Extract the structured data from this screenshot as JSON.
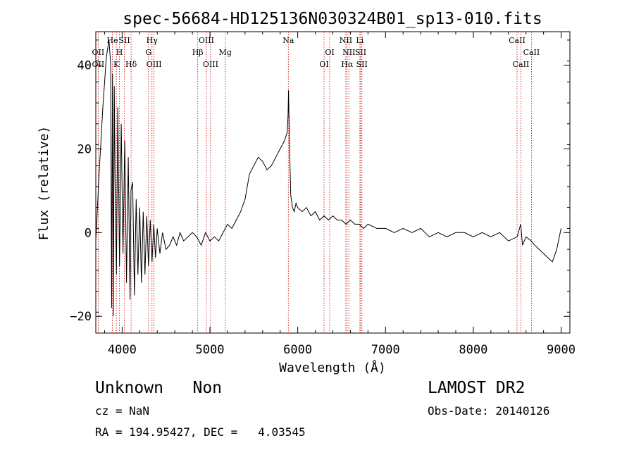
{
  "chart_data": {
    "type": "line",
    "title": "spec-56684-HD125136N030324B01_sp13-010.fits",
    "xlabel": "Wavelength (Å)",
    "ylabel": "Flux (relative)",
    "xlim": [
      3700,
      9100
    ],
    "ylim": [
      -24,
      48
    ],
    "xticks": [
      4000,
      5000,
      6000,
      7000,
      8000,
      9000
    ],
    "yticks": [
      -20,
      0,
      20,
      40
    ],
    "grid": false,
    "series": [
      {
        "color": "#000000",
        "x": [
          3700,
          3740,
          3780,
          3820,
          3850,
          3870,
          3880,
          3890,
          3900,
          3910,
          3920,
          3935,
          3950,
          3970,
          3990,
          4010,
          4030,
          4050,
          4070,
          4090,
          4100,
          4120,
          4140,
          4160,
          4180,
          4200,
          4220,
          4240,
          4260,
          4280,
          4300,
          4320,
          4340,
          4360,
          4380,
          4400,
          4430,
          4460,
          4500,
          4540,
          4580,
          4620,
          4660,
          4700,
          4750,
          4800,
          4850,
          4900,
          4950,
          5000,
          5050,
          5100,
          5150,
          5200,
          5250,
          5300,
          5350,
          5400,
          5450,
          5500,
          5550,
          5600,
          5650,
          5700,
          5750,
          5800,
          5850,
          5880,
          5890,
          5895,
          5900,
          5910,
          5920,
          5940,
          5960,
          5980,
          6000,
          6050,
          6100,
          6150,
          6200,
          6250,
          6300,
          6350,
          6400,
          6450,
          6500,
          6550,
          6600,
          6650,
          6700,
          6750,
          6800,
          6900,
          7000,
          7100,
          7200,
          7300,
          7400,
          7500,
          7600,
          7700,
          7800,
          7900,
          8000,
          8100,
          8200,
          8300,
          8400,
          8500,
          8540,
          8560,
          8600,
          8660,
          8700,
          8750,
          8800,
          8850,
          8900,
          8950,
          9000
        ],
        "y": [
          -2,
          15,
          30,
          42,
          46,
          40,
          -18,
          38,
          -20,
          35,
          12,
          -10,
          30,
          -8,
          26,
          -5,
          22,
          -12,
          18,
          -16,
          10,
          12,
          -15,
          8,
          -10,
          6,
          -12,
          5,
          -10,
          4,
          -8,
          3,
          -7,
          2,
          -6,
          1,
          -5,
          0,
          -4,
          -3,
          -1,
          -3,
          0,
          -2,
          -1,
          0,
          -1,
          -3,
          0,
          -2,
          -1,
          -2,
          0,
          2,
          1,
          3,
          5,
          8,
          14,
          16,
          18,
          17,
          15,
          16,
          18,
          20,
          22,
          24,
          28,
          34,
          28,
          18,
          9,
          6,
          5,
          7,
          6,
          5,
          6,
          4,
          5,
          3,
          4,
          3,
          4,
          3,
          3,
          2,
          3,
          2,
          2,
          1,
          2,
          1,
          1,
          0,
          1,
          0,
          1,
          -1,
          0,
          -1,
          0,
          0,
          -1,
          0,
          -1,
          0,
          -2,
          -1,
          2,
          -3,
          -1,
          -2,
          -3,
          -4,
          -5,
          -6,
          -7,
          -4,
          1
        ]
      }
    ],
    "line_markers": [
      {
        "wavelength": 3727,
        "label": "OII",
        "row": 2
      },
      {
        "wavelength": 3727,
        "label": "OII",
        "row": 3
      },
      {
        "wavelength": 3889,
        "label": "He",
        "row": 1
      },
      {
        "wavelength": 3934,
        "label": "K",
        "row": 3
      },
      {
        "wavelength": 3969,
        "label": "H",
        "row": 2
      },
      {
        "wavelength": 4026,
        "label": "SII",
        "row": 1
      },
      {
        "wavelength": 4102,
        "label": "Hδ",
        "row": 3
      },
      {
        "wavelength": 4300,
        "label": "G",
        "row": 2
      },
      {
        "wavelength": 4340,
        "label": "Hγ",
        "row": 1
      },
      {
        "wavelength": 4363,
        "label": "OIII",
        "row": 3
      },
      {
        "wavelength": 4861,
        "label": "Hβ",
        "row": 2
      },
      {
        "wavelength": 4959,
        "label": "OIII",
        "row": 1
      },
      {
        "wavelength": 5007,
        "label": "OIII",
        "row": 3
      },
      {
        "wavelength": 5175,
        "label": "Mg",
        "row": 2
      },
      {
        "wavelength": 5893,
        "label": "Na",
        "row": 1
      },
      {
        "wavelength": 6300,
        "label": "OI",
        "row": 3
      },
      {
        "wavelength": 6364,
        "label": "OI",
        "row": 2
      },
      {
        "wavelength": 6548,
        "label": "NII",
        "row": 1
      },
      {
        "wavelength": 6563,
        "label": "Hα",
        "row": 3
      },
      {
        "wavelength": 6583,
        "label": "NII",
        "row": 2
      },
      {
        "wavelength": 6708,
        "label": "Li",
        "row": 1
      },
      {
        "wavelength": 6717,
        "label": "SII",
        "row": 2
      },
      {
        "wavelength": 6731,
        "label": "SII",
        "row": 3
      },
      {
        "wavelength": 8498,
        "label": "CaII",
        "row": 1
      },
      {
        "wavelength": 8542,
        "label": "CaII",
        "row": 3
      },
      {
        "wavelength": 8662,
        "label": "CaII",
        "row": 2
      }
    ]
  },
  "info": {
    "class_text": "Unknown   Non",
    "release": "LAMOST DR2",
    "cz": "cz = NaN",
    "obs_date": "Obs-Date: 20140126",
    "coords": "RA = 194.95427, DEC =   4.03545"
  }
}
